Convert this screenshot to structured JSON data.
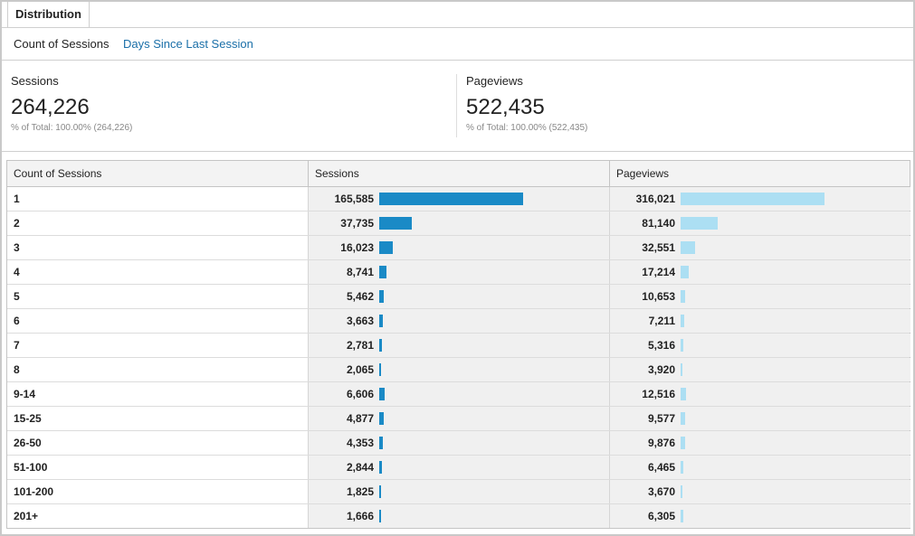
{
  "tabs": {
    "active": "Distribution"
  },
  "subtabs": {
    "active": "Count of Sessions",
    "link": "Days Since Last Session"
  },
  "metrics": [
    {
      "label": "Sessions",
      "value": "264,226",
      "sub": "% of Total: 100.00% (264,226)"
    },
    {
      "label": "Pageviews",
      "value": "522,435",
      "sub": "% of Total: 100.00% (522,435)"
    }
  ],
  "table": {
    "headers": [
      "Count of Sessions",
      "Sessions",
      "Pageviews"
    ],
    "rows": [
      {
        "label": "1",
        "sessions": "165,585",
        "pageviews": "316,021",
        "s": 165585,
        "p": 316021
      },
      {
        "label": "2",
        "sessions": "37,735",
        "pageviews": "81,140",
        "s": 37735,
        "p": 81140
      },
      {
        "label": "3",
        "sessions": "16,023",
        "pageviews": "32,551",
        "s": 16023,
        "p": 32551
      },
      {
        "label": "4",
        "sessions": "8,741",
        "pageviews": "17,214",
        "s": 8741,
        "p": 17214
      },
      {
        "label": "5",
        "sessions": "5,462",
        "pageviews": "10,653",
        "s": 5462,
        "p": 10653
      },
      {
        "label": "6",
        "sessions": "3,663",
        "pageviews": "7,211",
        "s": 3663,
        "p": 7211
      },
      {
        "label": "7",
        "sessions": "2,781",
        "pageviews": "5,316",
        "s": 2781,
        "p": 5316
      },
      {
        "label": "8",
        "sessions": "2,065",
        "pageviews": "3,920",
        "s": 2065,
        "p": 3920
      },
      {
        "label": "9-14",
        "sessions": "6,606",
        "pageviews": "12,516",
        "s": 6606,
        "p": 12516
      },
      {
        "label": "15-25",
        "sessions": "4,877",
        "pageviews": "9,577",
        "s": 4877,
        "p": 9577
      },
      {
        "label": "26-50",
        "sessions": "4,353",
        "pageviews": "9,876",
        "s": 4353,
        "p": 9876
      },
      {
        "label": "51-100",
        "sessions": "2,844",
        "pageviews": "6,465",
        "s": 2844,
        "p": 6465
      },
      {
        "label": "101-200",
        "sessions": "1,825",
        "pageviews": "3,670",
        "s": 1825,
        "p": 3670
      },
      {
        "label": "201+",
        "sessions": "1,666",
        "pageviews": "6,305",
        "s": 1666,
        "p": 6305
      }
    ]
  },
  "colors": {
    "sessions_bar": "#1a8ac6",
    "pageviews_bar": "#acdff3",
    "link": "#1a6fa8"
  }
}
